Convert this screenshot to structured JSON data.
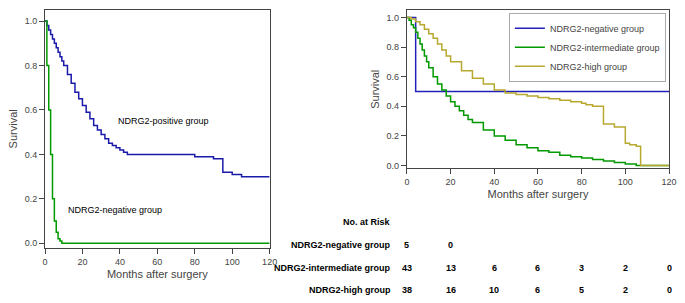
{
  "chart_data": [
    {
      "type": "step",
      "xlabel": "Months after surgery",
      "ylabel": "Survival",
      "xlim": [
        0,
        120
      ],
      "ylim": [
        -0.02,
        1.05
      ],
      "xticks": [
        0,
        20,
        40,
        60,
        80,
        100,
        120
      ],
      "yticks": [
        {
          "value": 0.0,
          "label": "0.0"
        },
        0.2,
        0.4,
        0.6,
        0.8,
        {
          "value": 1.0,
          "label": "1.0"
        }
      ],
      "series": [
        {
          "color": "#1a1aaa",
          "x": [
            0,
            1,
            2,
            3,
            4,
            5,
            6,
            7,
            8,
            9,
            10,
            12,
            14,
            16,
            18,
            20,
            22,
            24,
            26,
            28,
            30,
            32,
            34,
            36,
            38,
            40,
            42,
            44,
            46,
            48,
            50,
            55,
            60,
            65,
            70,
            75,
            80,
            85,
            90,
            95,
            100,
            105,
            110,
            115,
            120
          ],
          "values": [
            1.0,
            0.98,
            0.96,
            0.94,
            0.92,
            0.9,
            0.88,
            0.86,
            0.84,
            0.82,
            0.8,
            0.76,
            0.72,
            0.68,
            0.65,
            0.62,
            0.59,
            0.56,
            0.53,
            0.51,
            0.49,
            0.47,
            0.45,
            0.44,
            0.43,
            0.42,
            0.41,
            0.4,
            0.4,
            0.4,
            0.4,
            0.4,
            0.4,
            0.4,
            0.4,
            0.4,
            0.39,
            0.39,
            0.38,
            0.32,
            0.31,
            0.3,
            0.3,
            0.3,
            0.3
          ]
        },
        {
          "color": "#009900",
          "x": [
            0,
            1,
            2,
            3,
            4,
            5,
            6,
            7,
            8,
            9,
            10,
            120
          ],
          "values": [
            1.0,
            0.8,
            0.6,
            0.4,
            0.2,
            0.1,
            0.05,
            0.02,
            0.01,
            0.0,
            0.0,
            0.0
          ]
        }
      ],
      "annotations": [
        {
          "x": 38,
          "y": 0.52,
          "text": "NDRG2-positive group"
        },
        {
          "x": 11,
          "y": 0.12,
          "text": "NDRG2-negative group"
        }
      ]
    },
    {
      "type": "step",
      "xlabel": "Months after surgery",
      "ylabel": "Survival",
      "xlim": [
        0,
        120
      ],
      "ylim": [
        -0.02,
        1.05
      ],
      "xticks": [
        0,
        20,
        40,
        60,
        80,
        100,
        120
      ],
      "yticks": [
        {
          "value": 0.0,
          "label": "0.0"
        },
        0.2,
        0.4,
        0.6,
        0.8,
        {
          "value": 1.0,
          "label": "1.0"
        }
      ],
      "legend": "upper right",
      "series": [
        {
          "name": "NDRG2-negative group",
          "color": "#2222bb",
          "x": [
            0,
            0,
            4,
            4,
            5,
            120
          ],
          "values": [
            1.0,
            1.0,
            1.0,
            0.5,
            0.5,
            0.5
          ]
        },
        {
          "name": "NDRG2-intermediate group",
          "color": "#009900",
          "x": [
            0,
            1,
            2,
            3,
            4,
            5,
            6,
            7,
            8,
            9,
            10,
            12,
            14,
            16,
            18,
            20,
            22,
            24,
            26,
            28,
            30,
            35,
            40,
            45,
            50,
            55,
            60,
            65,
            70,
            75,
            80,
            85,
            90,
            95,
            100,
            104,
            105,
            120
          ],
          "values": [
            1.0,
            0.98,
            0.95,
            0.93,
            0.9,
            0.86,
            0.82,
            0.78,
            0.74,
            0.7,
            0.66,
            0.6,
            0.55,
            0.51,
            0.47,
            0.43,
            0.4,
            0.37,
            0.34,
            0.31,
            0.29,
            0.24,
            0.2,
            0.17,
            0.14,
            0.12,
            0.1,
            0.09,
            0.07,
            0.06,
            0.05,
            0.04,
            0.03,
            0.02,
            0.01,
            0.01,
            0.0,
            0.0
          ]
        },
        {
          "name": "NDRG2-high group",
          "color": "#b8a830",
          "x": [
            0,
            2,
            4,
            6,
            8,
            10,
            12,
            14,
            16,
            18,
            20,
            25,
            30,
            35,
            40,
            45,
            50,
            55,
            60,
            65,
            70,
            75,
            80,
            82,
            85,
            90,
            95,
            100,
            102,
            105,
            107,
            120
          ],
          "values": [
            1.0,
            0.99,
            0.97,
            0.95,
            0.92,
            0.89,
            0.86,
            0.82,
            0.78,
            0.74,
            0.7,
            0.64,
            0.59,
            0.55,
            0.51,
            0.49,
            0.48,
            0.47,
            0.46,
            0.45,
            0.44,
            0.43,
            0.42,
            0.41,
            0.4,
            0.28,
            0.26,
            0.15,
            0.14,
            0.13,
            0.0,
            0.0
          ]
        }
      ],
      "risk_table": {
        "header": "No. at Risk",
        "rows": [
          {
            "label": "NDRG2-negative group",
            "values": [
              5,
              0,
              null,
              null,
              null,
              null,
              null
            ]
          },
          {
            "label": "NDRG2-intermediate group",
            "values": [
              43,
              13,
              6,
              6,
              3,
              2,
              0
            ]
          },
          {
            "label": "NDRG2-high group",
            "values": [
              38,
              16,
              10,
              6,
              5,
              2,
              0
            ]
          }
        ]
      }
    }
  ]
}
